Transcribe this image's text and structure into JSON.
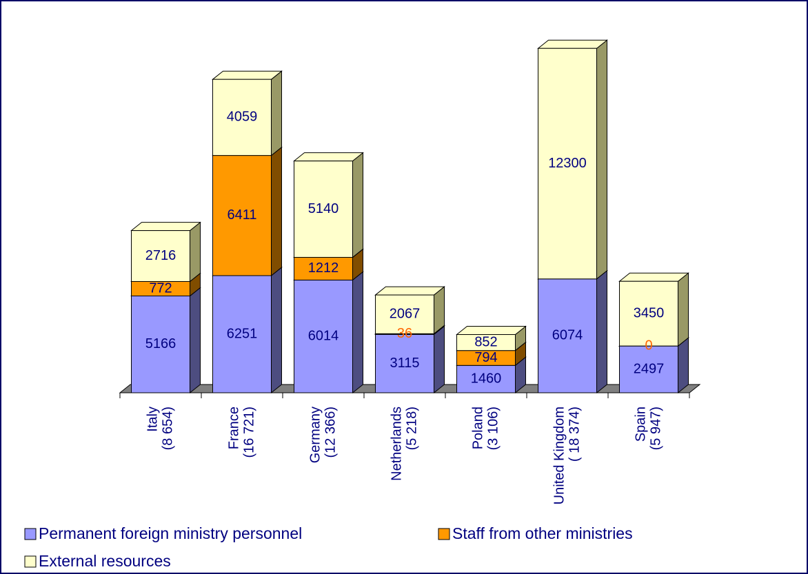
{
  "chart_data": {
    "type": "bar3d_stacked",
    "categories": [
      [
        "Italy",
        "(8 654)"
      ],
      [
        "France",
        "(16 721)"
      ],
      [
        "Germany",
        "(12 366)"
      ],
      [
        "Netherlands",
        "(5 218)"
      ],
      [
        "Poland",
        "(3 106)"
      ],
      [
        "United Kingdom",
        "( 18 374)"
      ],
      [
        "Spain",
        "(5 947)"
      ]
    ],
    "series": [
      {
        "name": "Permanent foreign ministry personnel",
        "color": "#9999ff",
        "side": "#4d4d80",
        "values": [
          5166,
          6251,
          6014,
          3115,
          1460,
          6074,
          2497
        ]
      },
      {
        "name": "Staff from other ministries",
        "color": "#ff9900",
        "side": "#804d00",
        "values": [
          772,
          6411,
          1212,
          36,
          794,
          null,
          0
        ]
      },
      {
        "name": "External resources",
        "color": "#ffffcc",
        "side": "#999966",
        "values": [
          2716,
          4059,
          5140,
          2067,
          852,
          12300,
          3450
        ]
      }
    ],
    "ylim": [
      0,
      20000
    ]
  }
}
